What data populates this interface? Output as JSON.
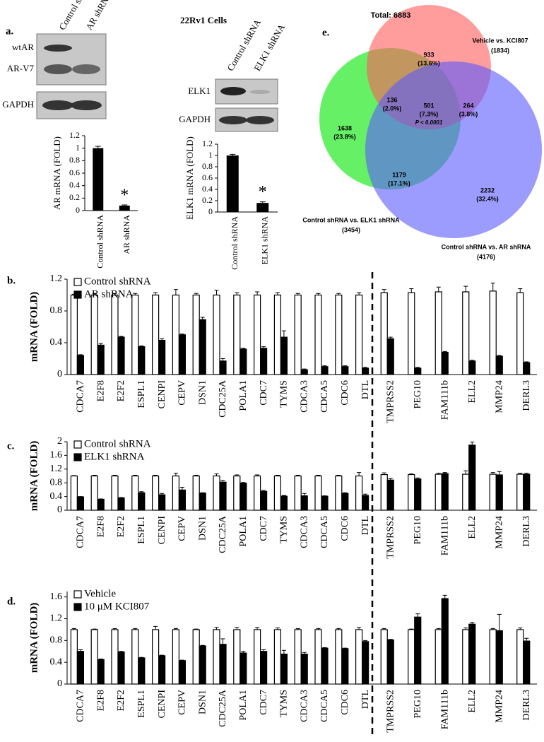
{
  "figure": {
    "title": "22Rv1 Cells",
    "panel_labels": [
      "a.",
      "b.",
      "c.",
      "d.",
      "e."
    ]
  },
  "blots": {
    "left": {
      "lanes": [
        "Control shRNA",
        "AR shRNA"
      ],
      "bands": [
        "wtAR",
        "AR-V7",
        "GAPDH"
      ]
    },
    "right": {
      "lanes": [
        "Control shRNA",
        "ELK1 shRNA"
      ],
      "bands": [
        "ELK1",
        "GAPDH"
      ]
    }
  },
  "chart_data": [
    {
      "type": "bar",
      "ylabel": "AR mRNA (FOLD)",
      "categories": [
        "Control shRNA",
        "AR shRNA"
      ],
      "values": [
        1,
        0.08
      ],
      "errors": [
        0.03,
        0.01
      ],
      "color": "#000000",
      "ylim": [
        0,
        1.2
      ],
      "yticks": [
        0,
        0.2,
        0.4,
        0.6,
        0.8,
        1,
        1.2
      ],
      "annotation": "*"
    },
    {
      "type": "bar",
      "ylabel": "ELK1 mRNA (FOLD)",
      "categories": [
        "Control shRNA",
        "ELK1 shRNA"
      ],
      "values": [
        1,
        0.16
      ],
      "errors": [
        0.02,
        0.02
      ],
      "color": "#000000",
      "ylim": [
        0,
        1.2
      ],
      "yticks": [
        0,
        0.2,
        0.4,
        0.6,
        0.8,
        1,
        1.2
      ],
      "annotation": "*"
    },
    {
      "type": "venn",
      "title": "Total: 6883",
      "sets": [
        {
          "name": "Vehicle vs. KCI807",
          "size": 1834,
          "size_label": "(1834)",
          "color": "#ff5a5a"
        },
        {
          "name": "Control shRNA vs. ELK1 shRNA",
          "size": 3454,
          "size_label": "(3454)",
          "color": "#55ee55"
        },
        {
          "name": "Control shRNA vs. AR shRNA",
          "size": 4176,
          "size_label": "(4176)",
          "color": "#5a5aff"
        }
      ],
      "regions": [
        {
          "count": 933,
          "percent": 13.6,
          "percent_label": "(13.6%)"
        },
        {
          "count": 136,
          "percent": 2.0,
          "percent_label": "(2.0%)"
        },
        {
          "count": 501,
          "percent": 7.3,
          "percent_label": "(7.3%)"
        },
        {
          "count": 264,
          "percent": 3.8,
          "percent_label": "(3.8%)"
        },
        {
          "count": 1638,
          "percent": 23.8,
          "percent_label": "(23.8%)"
        },
        {
          "count": 1179,
          "percent": 17.1,
          "percent_label": "(17.1%)"
        },
        {
          "count": 2232,
          "percent": 32.4,
          "percent_label": "(32.4%)"
        }
      ],
      "annotation": "P < 0.0001"
    },
    {
      "type": "grouped_bar",
      "ylabel": "mRNA (FOLD)",
      "categories": [
        "CDCA7",
        "E2F8",
        "E2F2",
        "ESPL1",
        "CENPI",
        "CEPV",
        "DSN1",
        "CDC25A",
        "POLA1",
        "CDC7",
        "TYMS",
        "CDCA3",
        "CDCA5",
        "CDC6",
        "DTL",
        "TMPRSS2",
        "PEG10",
        "FAM111b",
        "ELL2",
        "MMP24",
        "DERL3"
      ],
      "series": [
        {
          "name": "Control shRNA",
          "color": "#ffffff",
          "values": [
            1,
            1,
            1,
            1,
            1,
            1,
            1,
            1,
            1,
            1,
            1,
            1,
            1,
            1,
            1,
            1.03,
            1.03,
            1.04,
            1.04,
            1.05,
            1.03
          ],
          "errors": [
            0.01,
            0.02,
            0.02,
            0.02,
            0.03,
            0.07,
            0.02,
            0.06,
            0.03,
            0.04,
            0.03,
            0.02,
            0.02,
            0.02,
            0.03,
            0.04,
            0.05,
            0.06,
            0.07,
            0.1,
            0.05
          ]
        },
        {
          "name": "AR shRNA",
          "color": "#000000",
          "values": [
            0.24,
            0.37,
            0.47,
            0.35,
            0.43,
            0.5,
            0.69,
            0.17,
            0.32,
            0.33,
            0.47,
            0.06,
            0.1,
            0.1,
            0.08,
            0.45,
            0.08,
            0.28,
            0.17,
            0.23,
            0.15
          ],
          "errors": [
            0.01,
            0.02,
            0.01,
            0.01,
            0.02,
            0.01,
            0.03,
            0.03,
            0.01,
            0.02,
            0.08,
            0.01,
            0.01,
            0.01,
            0.01,
            0.02,
            0.01,
            0.01,
            0.01,
            0.01,
            0.01
          ]
        }
      ],
      "ylim": [
        0,
        1.2
      ],
      "yticks": [
        0,
        0.4,
        0.8,
        1.2
      ]
    },
    {
      "type": "grouped_bar",
      "ylabel": "mRNA (FOLD)",
      "categories": [
        "CDCA7",
        "E2F8",
        "E2F2",
        "ESPL1",
        "CENPI",
        "CEPV",
        "DSN1",
        "CDC25A",
        "POLA1",
        "CDC7",
        "TYMS",
        "CDCA3",
        "CDCA5",
        "CDC6",
        "DTL",
        "TMPRSS2",
        "PEG10",
        "FAM111b",
        "ELL2",
        "MMP24",
        "DERL3"
      ],
      "series": [
        {
          "name": "Control shRNA",
          "color": "#ffffff",
          "values": [
            1,
            1,
            1,
            1,
            1,
            1,
            1,
            1,
            1,
            1,
            1,
            1,
            1,
            1,
            1,
            1.04,
            1.04,
            1.05,
            1.05,
            1.05,
            1.05
          ],
          "errors": [
            0.01,
            0.02,
            0.02,
            0.02,
            0.02,
            0.08,
            0.02,
            0.06,
            0.03,
            0.03,
            0.02,
            0.02,
            0.02,
            0.02,
            0.1,
            0.05,
            0.02,
            0.03,
            0.1,
            0.05,
            0.03
          ]
        },
        {
          "name": "ELK1 shRNA",
          "color": "#000000",
          "values": [
            0.39,
            0.32,
            0.36,
            0.51,
            0.45,
            0.59,
            0.5,
            0.82,
            0.79,
            0.55,
            0.41,
            0.42,
            0.41,
            0.49,
            0.43,
            0.88,
            0.91,
            1.07,
            1.9,
            1.03,
            1.05
          ],
          "errors": [
            0.01,
            0.01,
            0.01,
            0.03,
            0.04,
            0.08,
            0.01,
            0.05,
            0.02,
            0.03,
            0.02,
            0.07,
            0.01,
            0.02,
            0.04,
            0.04,
            0.03,
            0.03,
            0.09,
            0.1,
            0.03
          ]
        }
      ],
      "ylim": [
        0,
        2
      ],
      "yticks": [
        0,
        0.4,
        0.8,
        1.2,
        1.6,
        2
      ]
    },
    {
      "type": "grouped_bar",
      "ylabel": "mRNA (FOLD)",
      "categories": [
        "CDCA7",
        "E2F8",
        "E2F2",
        "ESPL1",
        "CENPI",
        "CEPV",
        "DSN1",
        "CDC25A",
        "POLA1",
        "CDC7",
        "TYMS",
        "CDCA3",
        "CDCA5",
        "CDC6",
        "DTL",
        "TMPRSS2",
        "PEG10",
        "FAM111b",
        "ELL2",
        "MMP24",
        "DERL3"
      ],
      "series": [
        {
          "name": "Vehicle",
          "color": "#ffffff",
          "values": [
            1,
            1,
            1,
            1,
            1,
            1,
            1,
            1,
            1,
            1,
            1,
            1,
            1,
            1,
            1,
            1,
            1,
            1,
            1,
            1,
            1
          ],
          "errors": [
            0.02,
            0.01,
            0.02,
            0.02,
            0.06,
            0.02,
            0.01,
            0.04,
            0.04,
            0.04,
            0.03,
            0.02,
            0.02,
            0.02,
            0.04,
            0.02,
            0.01,
            0.02,
            0.03,
            0.02,
            0.03
          ]
        },
        {
          "name": "10 μM KCI807",
          "color": "#000000",
          "values": [
            0.6,
            0.45,
            0.59,
            0.48,
            0.52,
            0.43,
            0.7,
            0.73,
            0.57,
            0.6,
            0.55,
            0.55,
            0.66,
            0.65,
            0.78,
            0.81,
            1.23,
            1.57,
            1.1,
            0.98,
            0.79
          ],
          "errors": [
            0.03,
            0.01,
            0.01,
            0.01,
            0.01,
            0.01,
            0.01,
            0.1,
            0.03,
            0.03,
            0.07,
            0.03,
            0.01,
            0.01,
            0.02,
            0.01,
            0.06,
            0.06,
            0.03,
            0.3,
            0.05
          ]
        }
      ],
      "ylim": [
        0,
        1.7
      ],
      "yticks": [
        0,
        0.4,
        0.8,
        1.2,
        1.6
      ]
    }
  ]
}
